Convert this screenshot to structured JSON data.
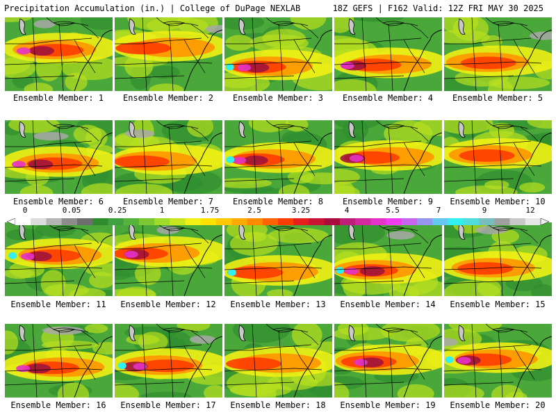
{
  "header": {
    "left": "Precipitation Accumulation (in.) | College of DuPage NEXLAB",
    "right": "18Z GEFS | F162 Valid: 12Z FRI MAY 30 2025"
  },
  "members": [
    "Ensemble Member: 1",
    "Ensemble Member: 2",
    "Ensemble Member: 3",
    "Ensemble Member: 4",
    "Ensemble Member: 5",
    "Ensemble Member: 6",
    "Ensemble Member: 7",
    "Ensemble Member: 8",
    "Ensemble Member: 9",
    "Ensemble Member: 10",
    "Ensemble Member: 11",
    "Ensemble Member: 12",
    "Ensemble Member: 13",
    "Ensemble Member: 14",
    "Ensemble Member: 15",
    "Ensemble Member: 16",
    "Ensemble Member: 17",
    "Ensemble Member: 18",
    "Ensemble Member: 19",
    "Ensemble Member: 20"
  ],
  "colorbar": {
    "ticks": [
      "0",
      "0.05",
      "0.25",
      "1",
      "1.75",
      "2.5",
      "3.25",
      "4",
      "5.5",
      "7",
      "9",
      "12"
    ],
    "colors": [
      "#ffffff",
      "#dcdcdc",
      "#b4b4b4",
      "#8c8c8c",
      "#6e6e6e",
      "#2e8b2e",
      "#3fa03f",
      "#56b43c",
      "#7cc832",
      "#a0dc28",
      "#c8e61e",
      "#f0f014",
      "#ffe100",
      "#ffc800",
      "#ffaa00",
      "#ff8c00",
      "#ff6400",
      "#ff3c00",
      "#e61e1e",
      "#c81432",
      "#aa0a3c",
      "#be1e78",
      "#d228a0",
      "#e632c8",
      "#f03cf0",
      "#c864f0",
      "#9696f0",
      "#64c8f0",
      "#32f0f0",
      "#50dcdc",
      "#78bebe",
      "#9ea0a0",
      "#c8c8c8",
      "#e6e6e6"
    ]
  }
}
